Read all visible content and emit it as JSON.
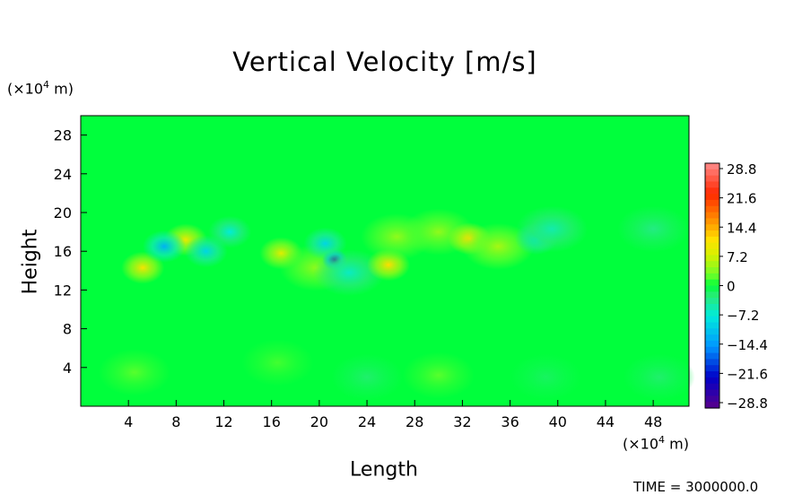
{
  "chart_data": {
    "type": "heatmap",
    "title": "Vertical Velocity [m/s]",
    "xlabel": "Length",
    "ylabel": "Height",
    "x_unit": "(×10⁴ m)",
    "y_unit": "(×10⁴ m)",
    "xlim": [
      0,
      51
    ],
    "ylim": [
      0,
      30
    ],
    "x_ticks": [
      "4",
      "8",
      "12",
      "16",
      "20",
      "24",
      "28",
      "32",
      "36",
      "40",
      "44",
      "48"
    ],
    "y_ticks": [
      "4",
      "8",
      "12",
      "16",
      "20",
      "24",
      "28"
    ],
    "colorbar": {
      "labels": [
        "28.8",
        "21.6",
        "14.4",
        "7.2",
        "0",
        "−7.2",
        "−14.4",
        "−21.6",
        "−28.8"
      ],
      "min": -28.8,
      "max": 28.8
    },
    "background_value": 0,
    "features": [
      {
        "x": 5.2,
        "y": 14.3,
        "value": 10
      },
      {
        "x": 8.8,
        "y": 17.2,
        "value": 9
      },
      {
        "x": 7.0,
        "y": 16.5,
        "value": -12
      },
      {
        "x": 10.5,
        "y": 16.0,
        "value": -9
      },
      {
        "x": 12.5,
        "y": 18.0,
        "value": -7
      },
      {
        "x": 16.8,
        "y": 15.8,
        "value": 8
      },
      {
        "x": 19.7,
        "y": 14.3,
        "value": 4
      },
      {
        "x": 21.3,
        "y": 15.1,
        "value": -26
      },
      {
        "x": 20.5,
        "y": 16.8,
        "value": -9
      },
      {
        "x": 22.5,
        "y": 13.8,
        "value": -6
      },
      {
        "x": 25.8,
        "y": 14.6,
        "value": 11
      },
      {
        "x": 26.5,
        "y": 17.5,
        "value": 4
      },
      {
        "x": 30.0,
        "y": 18.0,
        "value": 4
      },
      {
        "x": 32.6,
        "y": 17.3,
        "value": 11
      },
      {
        "x": 35.0,
        "y": 16.5,
        "value": 5
      },
      {
        "x": 38.2,
        "y": 17.3,
        "value": -8
      },
      {
        "x": 39.5,
        "y": 18.3,
        "value": -5
      },
      {
        "x": 48.0,
        "y": 18.3,
        "value": -3
      },
      {
        "x": 4.5,
        "y": 3.5,
        "value": 2
      },
      {
        "x": 16.5,
        "y": 4.5,
        "value": 1.5
      },
      {
        "x": 24.0,
        "y": 3.0,
        "value": -2
      },
      {
        "x": 30.0,
        "y": 3.2,
        "value": 2
      },
      {
        "x": 39.0,
        "y": 3.0,
        "value": -1.5
      },
      {
        "x": 48.5,
        "y": 3.0,
        "value": -2
      }
    ],
    "time_label": "TIME = 3000000.0"
  }
}
